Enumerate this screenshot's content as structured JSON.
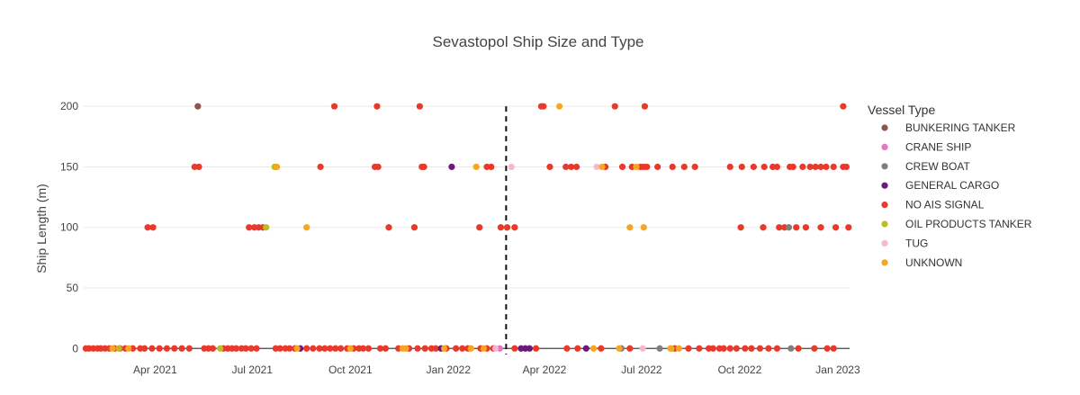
{
  "chart_data": {
    "type": "scatter",
    "title": "Sevastopol Ship Size and Type",
    "xlabel": "",
    "ylabel": "Ship Length (m)",
    "x_range": [
      "2021-01-24",
      "2023-01-12"
    ],
    "ylim": [
      -5,
      215
    ],
    "x_ticks": [
      {
        "date": "2021-04-01",
        "label": "Apr 2021"
      },
      {
        "date": "2021-07-01",
        "label": "Jul 2021"
      },
      {
        "date": "2021-10-01",
        "label": "Oct 2021"
      },
      {
        "date": "2022-01-01",
        "label": "Jan 2022"
      },
      {
        "date": "2022-04-01",
        "label": "Apr 2022"
      },
      {
        "date": "2022-07-01",
        "label": "Jul 2022"
      },
      {
        "date": "2022-10-01",
        "label": "Oct 2022"
      },
      {
        "date": "2023-01-01",
        "label": "Jan 2023"
      }
    ],
    "y_ticks": [
      0,
      50,
      100,
      150,
      200
    ],
    "grid": true,
    "vline": {
      "date": "2022-02-24",
      "style": "dashed"
    },
    "legend": {
      "title": "Vessel Type",
      "position": "right"
    },
    "series": [
      {
        "name": "BUNKERING TANKER",
        "color": "#8c564b",
        "points": [
          [
            "2021-05-11",
            200
          ]
        ]
      },
      {
        "name": "CRANE SHIP",
        "color": "#e377c2",
        "points": [
          [
            "2022-02-18",
            0
          ]
        ]
      },
      {
        "name": "CREW BOAT",
        "color": "#7f7f7f",
        "points": [
          [
            "2022-06-12",
            0
          ],
          [
            "2022-07-18",
            0
          ],
          [
            "2022-11-16",
            100
          ],
          [
            "2022-11-18",
            0
          ]
        ]
      },
      {
        "name": "GENERAL CARGO",
        "color": "#6a1b7a",
        "points": [
          [
            "2021-08-15",
            0
          ],
          [
            "2021-12-25",
            0
          ],
          [
            "2022-01-04",
            150
          ],
          [
            "2022-03-10",
            0
          ],
          [
            "2022-03-14",
            0
          ],
          [
            "2022-03-18",
            0
          ],
          [
            "2022-05-10",
            0
          ]
        ]
      },
      {
        "name": "NO AIS SIGNAL",
        "color": "#e8392b",
        "points": [
          [
            "2021-01-26",
            0
          ],
          [
            "2021-01-29",
            0
          ],
          [
            "2021-02-02",
            0
          ],
          [
            "2021-02-06",
            0
          ],
          [
            "2021-02-09",
            0
          ],
          [
            "2021-02-13",
            0
          ],
          [
            "2021-02-17",
            0
          ],
          [
            "2021-02-22",
            0
          ],
          [
            "2021-02-27",
            0
          ],
          [
            "2021-03-04",
            0
          ],
          [
            "2021-03-11",
            0
          ],
          [
            "2021-03-18",
            0
          ],
          [
            "2021-03-22",
            0
          ],
          [
            "2021-03-29",
            0
          ],
          [
            "2021-04-05",
            0
          ],
          [
            "2021-04-12",
            0
          ],
          [
            "2021-04-19",
            0
          ],
          [
            "2021-04-26",
            0
          ],
          [
            "2021-05-03",
            0
          ],
          [
            "2021-05-17",
            0
          ],
          [
            "2021-05-21",
            0
          ],
          [
            "2021-05-25",
            0
          ],
          [
            "2021-06-04",
            0
          ],
          [
            "2021-06-08",
            0
          ],
          [
            "2021-06-12",
            0
          ],
          [
            "2021-06-16",
            0
          ],
          [
            "2021-06-21",
            0
          ],
          [
            "2021-06-25",
            0
          ],
          [
            "2021-06-30",
            0
          ],
          [
            "2021-07-05",
            0
          ],
          [
            "2021-07-23",
            0
          ],
          [
            "2021-07-27",
            0
          ],
          [
            "2021-08-01",
            0
          ],
          [
            "2021-08-05",
            0
          ],
          [
            "2021-08-10",
            0
          ],
          [
            "2021-08-21",
            0
          ],
          [
            "2021-08-27",
            0
          ],
          [
            "2021-09-02",
            0
          ],
          [
            "2021-09-07",
            0
          ],
          [
            "2021-09-12",
            0
          ],
          [
            "2021-09-17",
            0
          ],
          [
            "2021-09-22",
            0
          ],
          [
            "2021-09-28",
            0
          ],
          [
            "2021-10-04",
            0
          ],
          [
            "2021-10-09",
            0
          ],
          [
            "2021-10-13",
            0
          ],
          [
            "2021-10-18",
            0
          ],
          [
            "2021-10-29",
            0
          ],
          [
            "2021-11-03",
            0
          ],
          [
            "2021-11-15",
            0
          ],
          [
            "2021-11-25",
            0
          ],
          [
            "2021-12-03",
            0
          ],
          [
            "2021-12-10",
            0
          ],
          [
            "2021-12-16",
            0
          ],
          [
            "2021-12-20",
            0
          ],
          [
            "2021-12-30",
            0
          ],
          [
            "2022-01-08",
            0
          ],
          [
            "2022-01-14",
            0
          ],
          [
            "2022-01-19",
            0
          ],
          [
            "2022-01-31",
            0
          ],
          [
            "2022-02-06",
            0
          ],
          [
            "2022-02-12",
            0
          ],
          [
            "2022-03-04",
            0
          ],
          [
            "2022-03-24",
            0
          ],
          [
            "2022-04-22",
            0
          ],
          [
            "2022-05-02",
            0
          ],
          [
            "2022-05-24",
            0
          ],
          [
            "2022-06-20",
            0
          ],
          [
            "2022-08-01",
            0
          ],
          [
            "2022-08-14",
            0
          ],
          [
            "2022-08-24",
            0
          ],
          [
            "2022-09-02",
            0
          ],
          [
            "2022-09-06",
            0
          ],
          [
            "2022-09-12",
            0
          ],
          [
            "2022-09-16",
            0
          ],
          [
            "2022-09-22",
            0
          ],
          [
            "2022-09-28",
            0
          ],
          [
            "2022-10-06",
            0
          ],
          [
            "2022-10-12",
            0
          ],
          [
            "2022-10-20",
            0
          ],
          [
            "2022-10-28",
            0
          ],
          [
            "2022-11-05",
            0
          ],
          [
            "2022-11-25",
            0
          ],
          [
            "2022-12-10",
            0
          ],
          [
            "2022-12-22",
            0
          ],
          [
            "2022-12-28",
            0
          ],
          [
            "2021-03-25",
            100
          ],
          [
            "2021-03-30",
            100
          ],
          [
            "2021-06-28",
            100
          ],
          [
            "2021-07-03",
            100
          ],
          [
            "2021-07-07",
            100
          ],
          [
            "2021-07-11",
            100
          ],
          [
            "2021-11-06",
            100
          ],
          [
            "2021-11-30",
            100
          ],
          [
            "2022-01-30",
            100
          ],
          [
            "2022-02-19",
            100
          ],
          [
            "2022-02-25",
            100
          ],
          [
            "2022-03-04",
            100
          ],
          [
            "2022-10-02",
            100
          ],
          [
            "2022-10-23",
            100
          ],
          [
            "2022-11-07",
            100
          ],
          [
            "2022-11-12",
            100
          ],
          [
            "2022-11-23",
            100
          ],
          [
            "2022-12-02",
            100
          ],
          [
            "2022-12-16",
            100
          ],
          [
            "2022-12-30",
            100
          ],
          [
            "2023-01-11",
            100
          ],
          [
            "2021-05-08",
            150
          ],
          [
            "2021-05-12",
            150
          ],
          [
            "2021-07-23",
            150
          ],
          [
            "2021-09-03",
            150
          ],
          [
            "2021-10-24",
            150
          ],
          [
            "2021-10-27",
            150
          ],
          [
            "2021-12-07",
            150
          ],
          [
            "2021-12-09",
            150
          ],
          [
            "2022-02-06",
            150
          ],
          [
            "2022-02-10",
            150
          ],
          [
            "2022-04-06",
            150
          ],
          [
            "2022-04-21",
            150
          ],
          [
            "2022-04-26",
            150
          ],
          [
            "2022-05-01",
            150
          ],
          [
            "2022-05-28",
            150
          ],
          [
            "2022-06-13",
            150
          ],
          [
            "2022-06-22",
            150
          ],
          [
            "2022-06-30",
            150
          ],
          [
            "2022-07-03",
            150
          ],
          [
            "2022-07-06",
            150
          ],
          [
            "2022-07-16",
            150
          ],
          [
            "2022-07-30",
            150
          ],
          [
            "2022-08-10",
            150
          ],
          [
            "2022-08-20",
            150
          ],
          [
            "2022-09-22",
            150
          ],
          [
            "2022-10-03",
            150
          ],
          [
            "2022-10-14",
            150
          ],
          [
            "2022-10-24",
            150
          ],
          [
            "2022-11-01",
            150
          ],
          [
            "2022-11-05",
            150
          ],
          [
            "2022-11-17",
            150
          ],
          [
            "2022-11-20",
            150
          ],
          [
            "2022-11-29",
            150
          ],
          [
            "2022-12-06",
            150
          ],
          [
            "2022-12-11",
            150
          ],
          [
            "2022-12-16",
            150
          ],
          [
            "2022-12-21",
            150
          ],
          [
            "2022-12-28",
            150
          ],
          [
            "2023-01-06",
            150
          ],
          [
            "2023-01-09",
            150
          ],
          [
            "2021-09-16",
            200
          ],
          [
            "2021-10-26",
            200
          ],
          [
            "2021-12-05",
            200
          ],
          [
            "2022-03-29",
            200
          ],
          [
            "2022-03-31",
            200
          ],
          [
            "2022-06-06",
            200
          ],
          [
            "2022-07-04",
            200
          ],
          [
            "2023-01-06",
            200
          ]
        ]
      },
      {
        "name": "OIL PRODUCTS TANKER",
        "color": "#bcbd22",
        "points": [
          [
            "2021-02-26",
            0
          ],
          [
            "2021-06-01",
            0
          ],
          [
            "2021-07-14",
            100
          ],
          [
            "2021-07-22",
            150
          ],
          [
            "2022-07-29",
            0
          ]
        ]
      },
      {
        "name": "TUG",
        "color": "#f7b6d2",
        "points": [
          [
            "2022-02-14",
            0
          ],
          [
            "2022-03-01",
            150
          ],
          [
            "2022-05-20",
            150
          ],
          [
            "2022-07-02",
            0
          ]
        ]
      },
      {
        "name": "UNKNOWN",
        "color": "#f5a623",
        "points": [
          [
            "2021-02-20",
            0
          ],
          [
            "2021-03-07",
            0
          ],
          [
            "2021-07-24",
            150
          ],
          [
            "2021-08-12",
            0
          ],
          [
            "2021-08-21",
            100
          ],
          [
            "2021-10-01",
            0
          ],
          [
            "2021-11-19",
            0
          ],
          [
            "2021-11-22",
            0
          ],
          [
            "2021-12-28",
            0
          ],
          [
            "2022-01-22",
            0
          ],
          [
            "2022-01-27",
            150
          ],
          [
            "2022-02-03",
            0
          ],
          [
            "2022-04-15",
            200
          ],
          [
            "2022-05-17",
            0
          ],
          [
            "2022-05-25",
            150
          ],
          [
            "2022-06-10",
            0
          ],
          [
            "2022-06-20",
            100
          ],
          [
            "2022-06-26",
            150
          ],
          [
            "2022-07-03",
            100
          ],
          [
            "2022-07-28",
            0
          ],
          [
            "2022-08-05",
            0
          ]
        ]
      }
    ]
  }
}
